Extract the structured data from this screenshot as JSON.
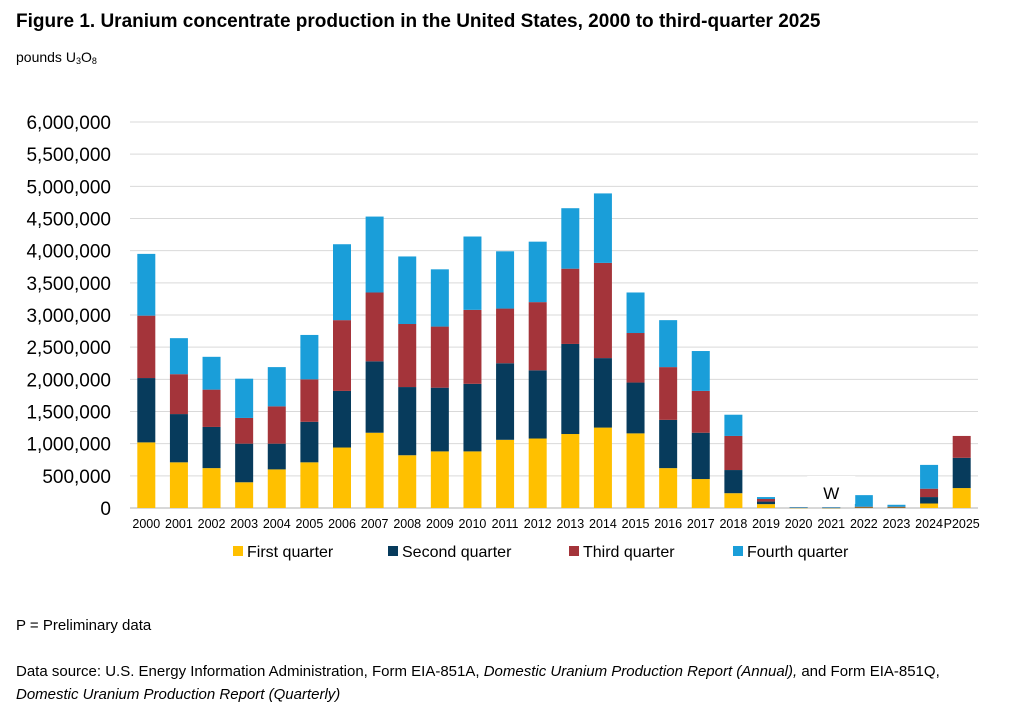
{
  "title": "Figure 1. Uranium concentrate production in the United States, 2000 to third-quarter 2025",
  "units": {
    "prefix": "pounds U",
    "sub1": "3",
    "mid": "O",
    "sub2": "8"
  },
  "note": "P = Preliminary data",
  "source": {
    "part1": "Data source: U.S. Energy Information Administration, Form EIA-851A, ",
    "italic1": "Domestic Uranium Production Report (Annual),",
    "part2": " and Form EIA-851Q, ",
    "italic2": "Domestic Uranium Production Report (Quarterly)"
  },
  "chart_data": {
    "type": "bar",
    "stacked": true,
    "title": "Figure 1. Uranium concentrate production in the United States, 2000 to third-quarter 2025",
    "ylabel": "pounds U3O8",
    "xlabel": "",
    "ylim": [
      0,
      6000000
    ],
    "yticks": [
      0,
      500000,
      1000000,
      1500000,
      2000000,
      2500000,
      3000000,
      3500000,
      4000000,
      4500000,
      5000000,
      5500000,
      6000000
    ],
    "ytick_labels": [
      "0",
      "500,000",
      "1,000,000",
      "1,500,000",
      "2,000,000",
      "2,500,000",
      "3,000,000",
      "3,500,000",
      "4,000,000",
      "4,500,000",
      "5,000,000",
      "5,500,000",
      "6,000,000"
    ],
    "grid": true,
    "legend_position": "bottom",
    "categories": [
      "2000",
      "2001",
      "2002",
      "2003",
      "2004",
      "2005",
      "2006",
      "2007",
      "2008",
      "2009",
      "2010",
      "2011",
      "2012",
      "2013",
      "2014",
      "2015",
      "2016",
      "2017",
      "2018",
      "2019",
      "2020",
      "2021",
      "2022",
      "2023",
      "2024",
      "P2025"
    ],
    "series": [
      {
        "name": "First quarter",
        "color": "#FFC000",
        "values": [
          1020000,
          710000,
          620000,
          400000,
          600000,
          710000,
          940000,
          1170000,
          820000,
          880000,
          880000,
          1060000,
          1080000,
          1150000,
          1250000,
          1160000,
          620000,
          450000,
          230000,
          60000,
          5000,
          3000,
          10000,
          10000,
          70000,
          310000
        ]
      },
      {
        "name": "Second quarter",
        "color": "#073B5C",
        "values": [
          1000000,
          750000,
          640000,
          600000,
          400000,
          630000,
          880000,
          1110000,
          1060000,
          990000,
          1050000,
          1190000,
          1060000,
          1400000,
          1080000,
          790000,
          750000,
          720000,
          360000,
          40000,
          3000,
          3000,
          5000,
          5000,
          100000,
          470000
        ]
      },
      {
        "name": "Third quarter",
        "color": "#A4343A",
        "values": [
          970000,
          620000,
          580000,
          400000,
          580000,
          660000,
          1100000,
          1070000,
          980000,
          950000,
          1150000,
          850000,
          1060000,
          1170000,
          1480000,
          770000,
          820000,
          650000,
          530000,
          40000,
          2000,
          3000,
          5000,
          5000,
          130000,
          340000
        ]
      },
      {
        "name": "Fourth quarter",
        "color": "#1A9ED9",
        "values": [
          960000,
          560000,
          510000,
          610000,
          610000,
          690000,
          1180000,
          1180000,
          1050000,
          890000,
          1140000,
          890000,
          940000,
          940000,
          1080000,
          630000,
          730000,
          620000,
          330000,
          30000,
          2000,
          3000,
          180000,
          30000,
          370000,
          0
        ]
      }
    ],
    "annotations": [
      {
        "category": "2021",
        "text": "W"
      }
    ]
  }
}
